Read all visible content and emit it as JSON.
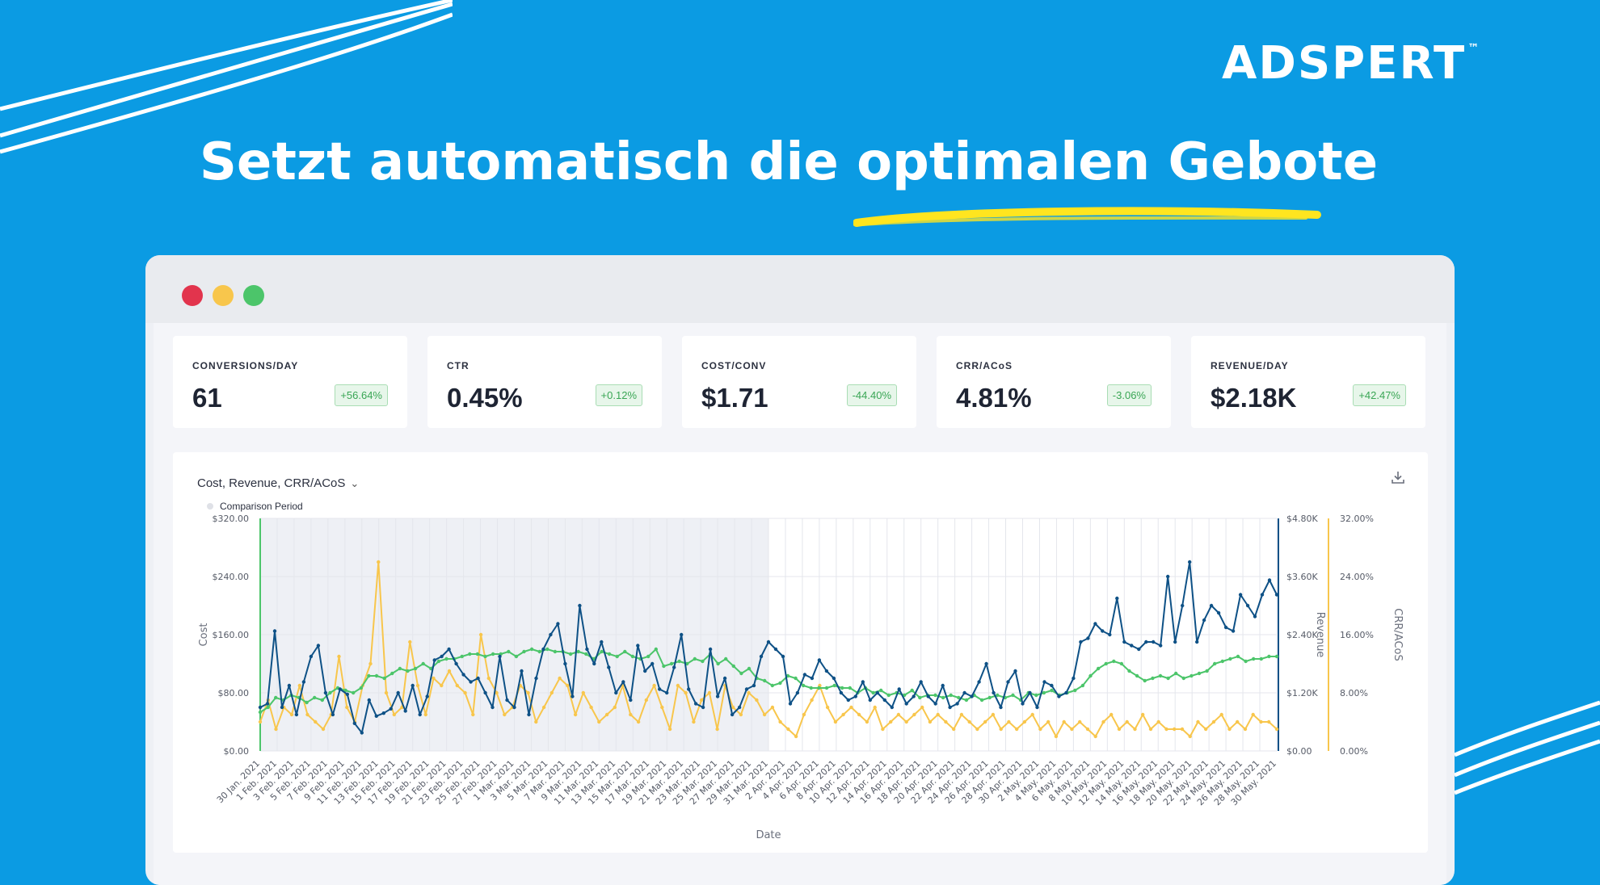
{
  "brand": {
    "name": "ADSPERT",
    "tm": "™"
  },
  "headline": "Setzt automatisch die optimalen Gebote",
  "colors": {
    "background": "#0b9be3",
    "cost": "#0e5186",
    "revenue": "#4cc56a",
    "crr": "#f8c64c",
    "badge_text": "#3aa655"
  },
  "kpis": [
    {
      "label": "CONVERSIONS/DAY",
      "value": "61",
      "change": "+56.64%"
    },
    {
      "label": "CTR",
      "value": "0.45%",
      "change": "+0.12%"
    },
    {
      "label": "COST/CONV",
      "value": "$1.71",
      "change": "-44.40%"
    },
    {
      "label": "CRR/ACoS",
      "value": "4.81%",
      "change": "-3.06%"
    },
    {
      "label": "REVENUE/DAY",
      "value": "$2.18K",
      "change": "+42.47%"
    }
  ],
  "chart": {
    "selector": "Cost, Revenue, CRR/ACoS",
    "legend": "Comparison Period"
  },
  "chart_data": {
    "type": "line",
    "xlabel": "Date",
    "ylabel_left": "Cost",
    "ylabel_right_1": "Revenue",
    "ylabel_right_2": "CRR/ACoS",
    "left_ticks": [
      "$0.00",
      "$80.00",
      "$160.00",
      "$240.00",
      "$320.00"
    ],
    "revenue_ticks": [
      "$0.00",
      "$1.20K",
      "$2.40K",
      "$3.60K",
      "$4.80K"
    ],
    "crr_ticks": [
      "0.00%",
      "8.00%",
      "16.00%",
      "24.00%",
      "32.00%"
    ],
    "ylim_cost": [
      0,
      320
    ],
    "ylim_revenue": [
      0,
      4800
    ],
    "ylim_crr": [
      0,
      32
    ],
    "comparison_period_end": "31 Mar. 2021",
    "x_labels": [
      "30 Jan. 2021",
      "1 Feb. 2021",
      "3 Feb. 2021",
      "5 Feb. 2021",
      "7 Feb. 2021",
      "9 Feb. 2021",
      "11 Feb. 2021",
      "13 Feb. 2021",
      "15 Feb. 2021",
      "17 Feb. 2021",
      "19 Feb. 2021",
      "21 Feb. 2021",
      "23 Feb. 2021",
      "25 Feb. 2021",
      "27 Feb. 2021",
      "1 Mar. 2021",
      "3 Mar. 2021",
      "5 Mar. 2021",
      "7 Mar. 2021",
      "9 Mar. 2021",
      "11 Mar. 2021",
      "13 Mar. 2021",
      "15 Mar. 2021",
      "17 Mar. 2021",
      "19 Mar. 2021",
      "21 Mar. 2021",
      "23 Mar. 2021",
      "25 Mar. 2021",
      "27 Mar. 2021",
      "29 Mar. 2021",
      "31 Mar. 2021",
      "2 Apr. 2021",
      "4 Apr. 2021",
      "6 Apr. 2021",
      "8 Apr. 2021",
      "10 Apr. 2021",
      "12 Apr. 2021",
      "14 Apr. 2021",
      "16 Apr. 2021",
      "18 Apr. 2021",
      "20 Apr. 2021",
      "22 Apr. 2021",
      "24 Apr. 2021",
      "26 Apr. 2021",
      "28 Apr. 2021",
      "30 Apr. 2021",
      "2 May. 2021",
      "4 May. 2021",
      "6 May. 2021",
      "8 May. 2021",
      "10 May. 2021",
      "12 May. 2021",
      "14 May. 2021",
      "16 May. 2021",
      "18 May. 2021",
      "20 May. 2021",
      "22 May. 2021",
      "24 May. 2021",
      "26 May. 2021",
      "28 May. 2021",
      "30 May. 2021"
    ],
    "series": [
      {
        "name": "Cost",
        "axis": "cost",
        "values": [
          60,
          65,
          165,
          60,
          90,
          50,
          95,
          130,
          145,
          80,
          50,
          85,
          78,
          38,
          25,
          70,
          48,
          52,
          58,
          80,
          55,
          90,
          50,
          75,
          125,
          130,
          140,
          120,
          105,
          95,
          100,
          80,
          60,
          130,
          70,
          60,
          110,
          50,
          100,
          140,
          160,
          175,
          120,
          75,
          200,
          140,
          120,
          150,
          115,
          80,
          95,
          70,
          145,
          110,
          120,
          85,
          80,
          115,
          160,
          85,
          65,
          60,
          140,
          75,
          100,
          50,
          60,
          85,
          90,
          130,
          150,
          140,
          130,
          65,
          80,
          105,
          100,
          125,
          110,
          100,
          80,
          70,
          75,
          95,
          70,
          80,
          70,
          60,
          85,
          65,
          75,
          95,
          75,
          65,
          90,
          60,
          65,
          80,
          75,
          95,
          120,
          80,
          60,
          95,
          110,
          65,
          80,
          60,
          95,
          90,
          75,
          80,
          100,
          150,
          155,
          175,
          165,
          160,
          210,
          150,
          145,
          140,
          150,
          150,
          145,
          240,
          150,
          200,
          260,
          150,
          180,
          200,
          190,
          170,
          165,
          215,
          200,
          185,
          215,
          235,
          215
        ]
      },
      {
        "name": "Revenue",
        "axis": "revenue",
        "values": [
          800,
          900,
          1100,
          1050,
          1150,
          1100,
          1000,
          1100,
          1050,
          1200,
          1300,
          1250,
          1200,
          1300,
          1550,
          1550,
          1500,
          1600,
          1700,
          1650,
          1700,
          1800,
          1700,
          1850,
          1900,
          1900,
          1950,
          2000,
          2000,
          1950,
          2000,
          2000,
          2050,
          1950,
          2050,
          2100,
          2050,
          2100,
          2050,
          2050,
          2000,
          2050,
          2000,
          1900,
          2050,
          2000,
          1950,
          2050,
          1950,
          1900,
          1950,
          2100,
          1750,
          1800,
          1850,
          1800,
          1900,
          1850,
          2000,
          1800,
          1900,
          1750,
          1600,
          1700,
          1500,
          1450,
          1350,
          1400,
          1550,
          1500,
          1350,
          1300,
          1300,
          1300,
          1350,
          1300,
          1300,
          1200,
          1300,
          1200,
          1250,
          1150,
          1200,
          1150,
          1250,
          1100,
          1150,
          1150,
          1100,
          1150,
          1100,
          1050,
          1150,
          1050,
          1100,
          1150,
          1100,
          1150,
          1050,
          1200,
          1150,
          1200,
          1250,
          1150,
          1200,
          1250,
          1350,
          1550,
          1700,
          1800,
          1850,
          1800,
          1650,
          1550,
          1450,
          1500,
          1550,
          1500,
          1600,
          1500,
          1550,
          1600,
          1650,
          1800,
          1850,
          1900,
          1950,
          1850,
          1900,
          1900,
          1950,
          1950
        ]
      },
      {
        "name": "CRR/ACoS",
        "axis": "crr",
        "values": [
          4,
          7,
          3,
          6,
          5,
          9,
          5,
          4,
          3,
          5,
          13,
          6,
          4,
          9,
          12,
          26,
          8,
          5,
          6,
          15,
          9,
          5,
          10,
          9,
          11,
          9,
          8,
          5,
          16,
          10,
          8,
          5,
          6,
          9,
          8,
          4,
          6,
          8,
          10,
          9,
          5,
          8,
          6,
          4,
          5,
          6,
          9,
          5,
          4,
          7,
          9,
          6,
          3,
          9,
          8,
          4,
          7,
          8,
          3,
          9,
          6,
          5,
          8,
          7,
          5,
          6,
          4,
          3,
          2,
          5,
          7,
          9,
          6,
          4,
          5,
          6,
          5,
          4,
          6,
          3,
          4,
          5,
          4,
          5,
          6,
          4,
          5,
          4,
          3,
          5,
          4,
          3,
          4,
          5,
          3,
          4,
          3,
          4,
          5,
          3,
          4,
          2,
          4,
          3,
          4,
          3,
          2,
          4,
          5,
          3,
          4,
          3,
          5,
          3,
          4,
          3,
          3,
          3,
          2,
          4,
          3,
          4,
          5,
          3,
          4,
          3,
          5,
          4,
          4,
          3
        ]
      }
    ]
  }
}
